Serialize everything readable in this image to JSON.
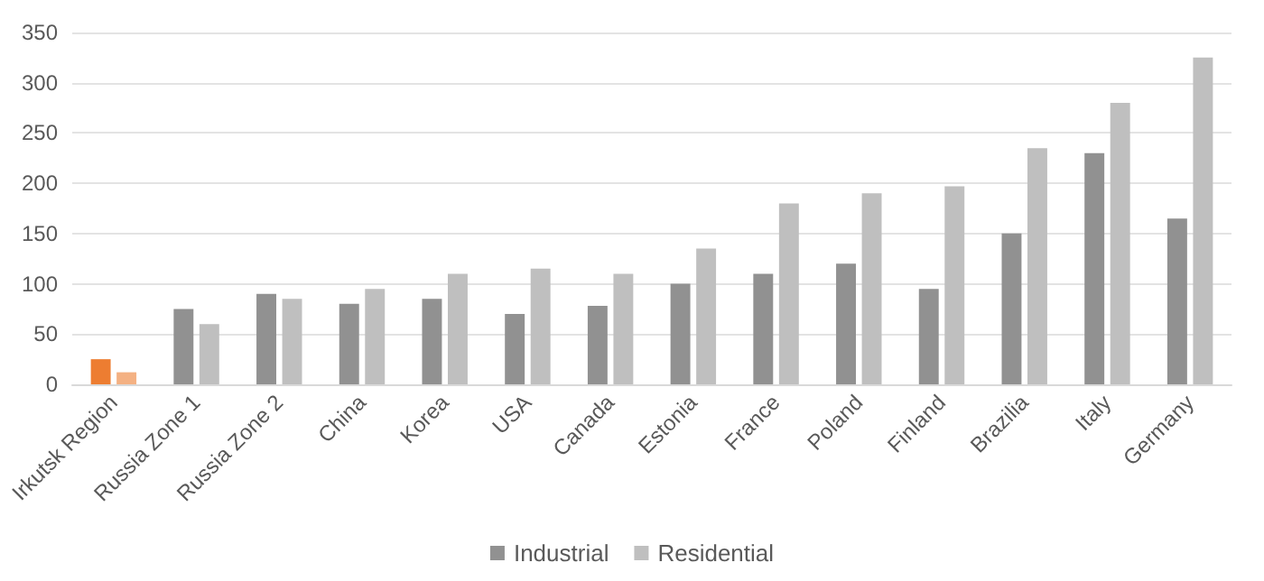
{
  "chart_data": {
    "type": "bar",
    "categories": [
      "Irkutsk Region",
      "Russia Zone 1",
      "Russia Zone 2",
      "China",
      "Korea",
      "USA",
      "Canada",
      "Estonia",
      "France",
      "Poland",
      "Finland",
      "Brazilia",
      "Italy",
      "Germany"
    ],
    "series": [
      {
        "name": "Industrial",
        "color": "#919191",
        "colors": [
          "#ed7d31",
          "#919191",
          "#919191",
          "#919191",
          "#919191",
          "#919191",
          "#919191",
          "#919191",
          "#919191",
          "#919191",
          "#919191",
          "#919191",
          "#919191",
          "#919191"
        ],
        "values": [
          25,
          75,
          90,
          80,
          85,
          70,
          78,
          100,
          110,
          120,
          95,
          150,
          230,
          165
        ]
      },
      {
        "name": "Residential",
        "color": "#bfbfbf",
        "colors": [
          "#f4b183",
          "#bfbfbf",
          "#bfbfbf",
          "#bfbfbf",
          "#bfbfbf",
          "#bfbfbf",
          "#bfbfbf",
          "#bfbfbf",
          "#bfbfbf",
          "#bfbfbf",
          "#bfbfbf",
          "#bfbfbf",
          "#bfbfbf",
          "#bfbfbf"
        ],
        "values": [
          12,
          60,
          85,
          95,
          110,
          115,
          110,
          135,
          180,
          190,
          197,
          235,
          280,
          325
        ]
      }
    ],
    "ylim": [
      0,
      350
    ],
    "yticks": [
      0,
      50,
      100,
      150,
      200,
      250,
      300,
      350
    ],
    "grid": "y",
    "legend": "bottom"
  }
}
